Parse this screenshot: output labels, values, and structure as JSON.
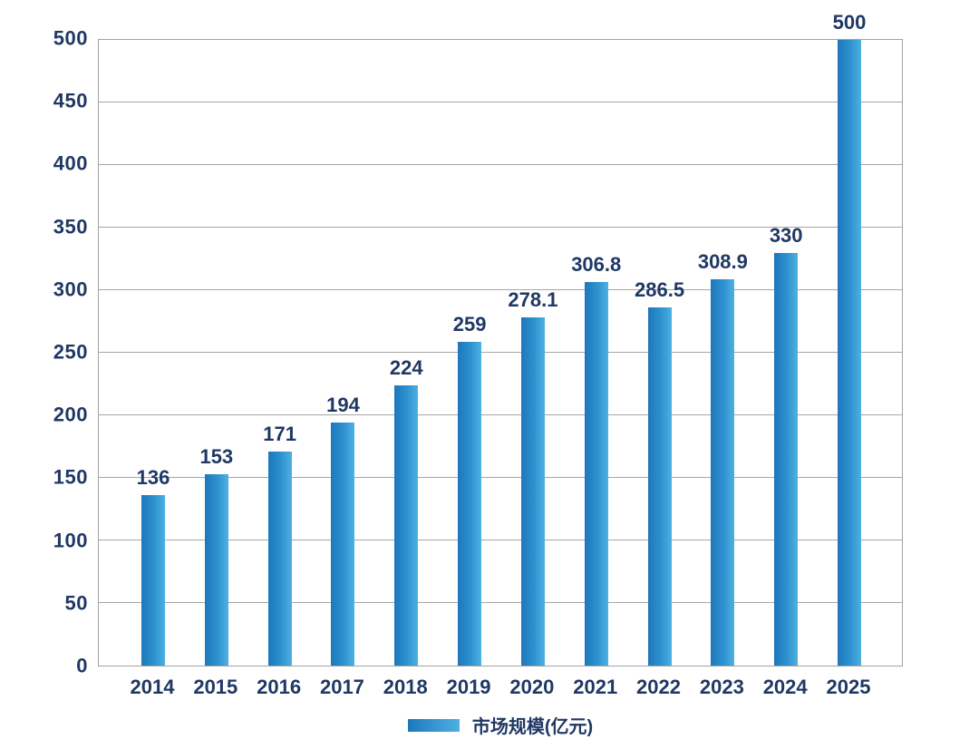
{
  "chart_data": {
    "type": "bar",
    "title": "",
    "categories": [
      "2014",
      "2015",
      "2016",
      "2017",
      "2018",
      "2019",
      "2020",
      "2021",
      "2022",
      "2023",
      "2024",
      "2025"
    ],
    "series": [
      {
        "name": "市场规模(亿元)",
        "values": [
          136,
          153,
          171,
          194,
          224,
          259,
          278.1,
          306.8,
          286.5,
          308.9,
          330,
          500
        ],
        "labels": [
          "136",
          "153",
          "171",
          "194",
          "224",
          "259",
          "278.1",
          "306.8",
          "286.5",
          "308.9",
          "330",
          "500"
        ]
      }
    ],
    "xlabel": "",
    "ylabel": "",
    "ylim": [
      0,
      500
    ],
    "yticks": [
      0,
      50,
      100,
      150,
      200,
      250,
      300,
      350,
      400,
      450,
      500
    ],
    "grid": true,
    "legend_position": "bottom",
    "colors": {
      "bar_gradient_start": "#1d77bb",
      "bar_gradient_end": "#4fb0e3",
      "text": "#1f3864",
      "gridline": "#a6a6a6",
      "plot_border": "#a3a3a3",
      "background": "#ffffff"
    }
  }
}
